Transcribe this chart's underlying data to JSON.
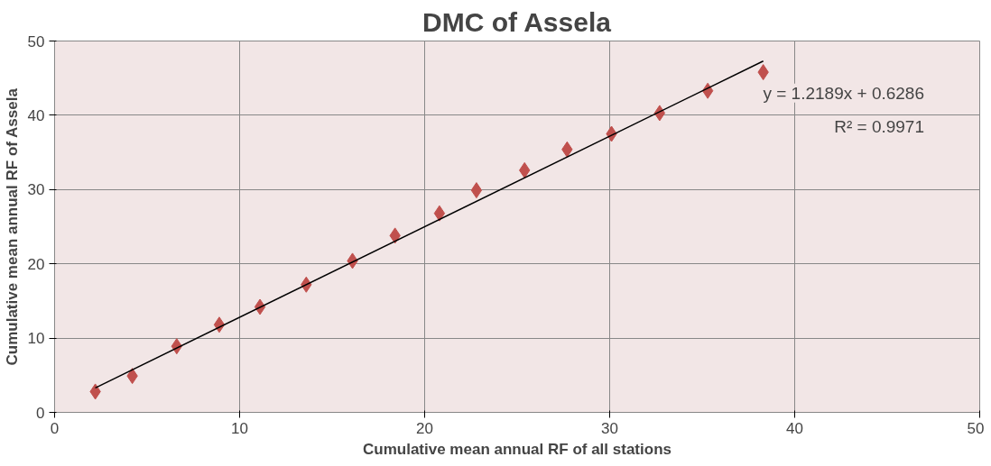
{
  "chart_data": {
    "type": "scatter",
    "title": "DMC of Assela",
    "xlabel": "Cumulative mean annual RF of all stations",
    "ylabel": "Cumulative mean annual RF of Assela",
    "xlim": [
      0,
      50
    ],
    "xticks": [
      0,
      10,
      20,
      30,
      40,
      50
    ],
    "ylim": [
      0,
      50
    ],
    "yticks": [
      0,
      10,
      20,
      30,
      40,
      50
    ],
    "grid": true,
    "series": [
      {
        "marker": "diamond",
        "color": "#c0504d",
        "x": [
          2.2,
          4.2,
          6.6,
          8.9,
          11.1,
          13.6,
          16.1,
          18.4,
          20.8,
          22.8,
          25.4,
          27.7,
          30.1,
          32.7,
          35.3,
          38.3
        ],
        "values": [
          2.8,
          4.9,
          8.9,
          11.8,
          14.2,
          17.2,
          20.4,
          23.8,
          26.8,
          29.9,
          32.6,
          35.4,
          37.5,
          40.3,
          43.3,
          45.8
        ]
      },
      {
        "type": "line",
        "color": "#000000",
        "x": [
          2.2,
          38.3
        ],
        "values": [
          3.3,
          47.3
        ]
      }
    ],
    "annotations": [
      "y = 1.2189x + 0.6286",
      "R² = 0.9971"
    ]
  }
}
